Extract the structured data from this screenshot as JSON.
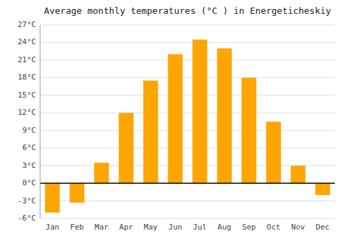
{
  "chart_data": {
    "type": "bar",
    "title": "Average monthly temperatures (°C ) in Energeticheskiy",
    "categories": [
      "Jan",
      "Feb",
      "Mar",
      "Apr",
      "May",
      "Jun",
      "Jul",
      "Aug",
      "Sep",
      "Oct",
      "Nov",
      "Dec"
    ],
    "values": [
      -5,
      -3.3,
      3.5,
      12,
      17.5,
      22,
      24.5,
      23,
      18,
      10.5,
      3,
      -2
    ],
    "color": "#FFA500",
    "ylim": [
      -6,
      27
    ],
    "yticks": [
      {
        "value": -6,
        "label": "-6°C"
      },
      {
        "value": -3,
        "label": "-3°C"
      },
      {
        "value": 0,
        "label": "0°C"
      },
      {
        "value": 3,
        "label": "3°C"
      },
      {
        "value": 6,
        "label": "6°C"
      },
      {
        "value": 9,
        "label": "9°C"
      },
      {
        "value": 12,
        "label": "12°C"
      },
      {
        "value": 15,
        "label": "15°C"
      },
      {
        "value": 18,
        "label": "18°C"
      },
      {
        "value": 21,
        "label": "21°C"
      },
      {
        "value": 24,
        "label": "24°C"
      },
      {
        "value": 27,
        "label": "27°C"
      }
    ],
    "grid": true
  }
}
